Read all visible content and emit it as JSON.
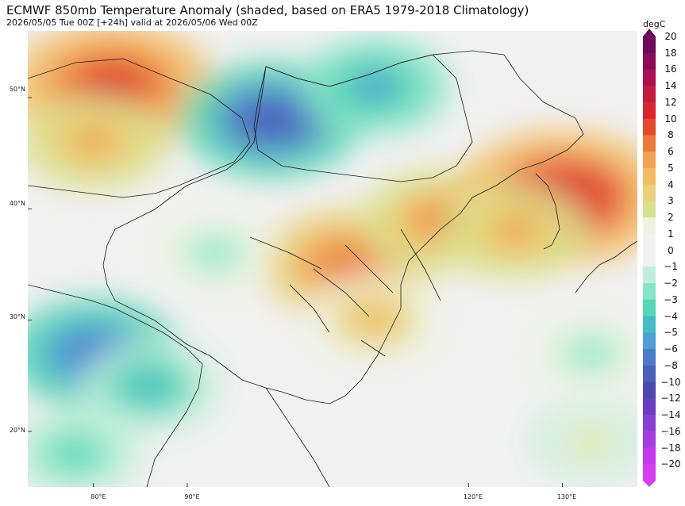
{
  "header": {
    "title": "ECMWF 850mb Temperature Anomaly (shaded, based on ERA5 1979-2018 Climatology)",
    "subtitle": "2026/05/05 Tue 00Z [+24h] valid at 2026/05/06 Wed 00Z"
  },
  "map": {
    "lat_labels": [
      "50°N",
      "40°N",
      "30°N",
      "20°N"
    ],
    "lon_labels": [
      "80°E",
      "90°E",
      "120°E",
      "130°E"
    ],
    "lat_range": [
      15,
      56
    ],
    "lon_range": [
      73,
      138
    ],
    "anomaly_regions": [
      {
        "lon": 82,
        "lat": 51,
        "value": 10
      },
      {
        "lon": 80,
        "lat": 46,
        "value": 5
      },
      {
        "lon": 99,
        "lat": 48,
        "value": -8
      },
      {
        "lon": 110,
        "lat": 51,
        "value": -5
      },
      {
        "lon": 107,
        "lat": 35,
        "value": 7
      },
      {
        "lon": 117,
        "lat": 39,
        "value": 6
      },
      {
        "lon": 130,
        "lat": 41,
        "value": 11
      },
      {
        "lon": 125,
        "lat": 38,
        "value": 5
      },
      {
        "lon": 110,
        "lat": 30,
        "value": 4
      },
      {
        "lon": 80,
        "lat": 27,
        "value": -7
      },
      {
        "lon": 86,
        "lat": 24,
        "value": -4
      },
      {
        "lon": 78,
        "lat": 18,
        "value": -3
      },
      {
        "lon": 93,
        "lat": 36,
        "value": -2
      },
      {
        "lon": 133,
        "lat": 27,
        "value": -2
      },
      {
        "lon": 133,
        "lat": 19,
        "value": 2
      }
    ]
  },
  "colorbar": {
    "unit": "degC",
    "levels": [
      "20",
      "18",
      "16",
      "14",
      "12",
      "10",
      "8",
      "6",
      "5",
      "4",
      "3",
      "2",
      "1",
      "0",
      "−1",
      "−2",
      "−3",
      "−4",
      "−5",
      "−6",
      "−8",
      "−10",
      "−12",
      "−14",
      "−16",
      "−18",
      "−20"
    ],
    "colors": [
      "#6d0a5e",
      "#8a0c58",
      "#a8124e",
      "#c41a3f",
      "#d8262f",
      "#e34a2e",
      "#ec7a3a",
      "#f2a254",
      "#f3bd64",
      "#e9d27a",
      "#d8e08f",
      "#eef3df",
      "#f1f1f1",
      "#f1f1f1",
      "#bfeeda",
      "#86e5c6",
      "#56d6b4",
      "#44bcc6",
      "#4f9fd5",
      "#4c7dcb",
      "#4d5fb9",
      "#5049ad",
      "#6a3fbf",
      "#8b3ed4",
      "#a63de0",
      "#c43aeb",
      "#d63cf0"
    ]
  }
}
